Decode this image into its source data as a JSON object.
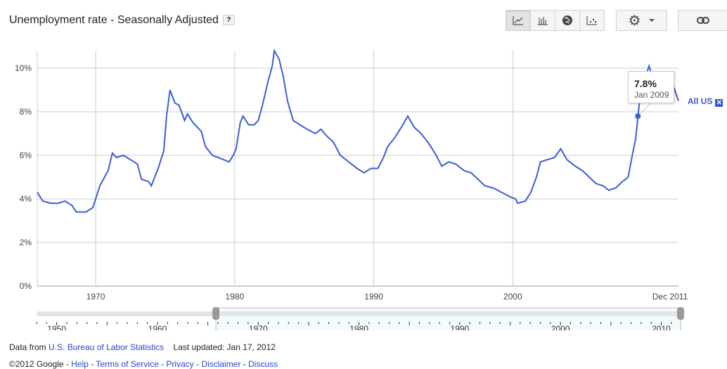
{
  "header": {
    "title": "Unemployment rate - Seasonally Adjusted",
    "help_label": "?"
  },
  "toolbar": {
    "chart_types": [
      {
        "name": "line-chart",
        "active": true
      },
      {
        "name": "bar-chart",
        "active": false
      },
      {
        "name": "map",
        "active": false
      },
      {
        "name": "bubble-chart",
        "active": false
      }
    ],
    "settings_icon": "gear-icon",
    "link_icon": "link-icon"
  },
  "tooltip": {
    "value": "7.8%",
    "date": "Jan 2009"
  },
  "series_label": {
    "name": "All US",
    "remove": "✕"
  },
  "colors": {
    "series": "#3b5ed6",
    "grid": "#cccccc",
    "link": "#2a44c8"
  },
  "chart_data": {
    "type": "line",
    "ylim": [
      0,
      10.8
    ],
    "xlim": [
      1965.8,
      2011.92
    ],
    "y_ticks": [
      {
        "v": 0,
        "label": "0%"
      },
      {
        "v": 2,
        "label": "2%"
      },
      {
        "v": 4,
        "label": "4%"
      },
      {
        "v": 6,
        "label": "6%"
      },
      {
        "v": 8,
        "label": "8%"
      },
      {
        "v": 10,
        "label": "10%"
      }
    ],
    "x_ticks": [
      {
        "v": 1970,
        "label": "1970"
      },
      {
        "v": 1980,
        "label": "1980"
      },
      {
        "v": 1990,
        "label": "1990"
      },
      {
        "v": 2000,
        "label": "2000"
      },
      {
        "v": 2011.92,
        "label": "Dec 2011"
      }
    ],
    "grid": true,
    "highlight": {
      "x": 2009.0,
      "y": 7.8
    },
    "series": [
      {
        "name": "All US",
        "points": [
          [
            1965.8,
            4.3
          ],
          [
            1966.2,
            3.9
          ],
          [
            1966.8,
            3.8
          ],
          [
            1967.3,
            3.8
          ],
          [
            1967.8,
            3.9
          ],
          [
            1968.3,
            3.7
          ],
          [
            1968.6,
            3.4
          ],
          [
            1969.3,
            3.4
          ],
          [
            1969.8,
            3.6
          ],
          [
            1970.3,
            4.6
          ],
          [
            1970.9,
            5.3
          ],
          [
            1971.2,
            6.1
          ],
          [
            1971.5,
            5.9
          ],
          [
            1972.0,
            6.0
          ],
          [
            1972.5,
            5.8
          ],
          [
            1973.0,
            5.6
          ],
          [
            1973.3,
            4.9
          ],
          [
            1973.8,
            4.8
          ],
          [
            1974.0,
            4.6
          ],
          [
            1974.5,
            5.4
          ],
          [
            1974.9,
            6.2
          ],
          [
            1975.1,
            7.8
          ],
          [
            1975.35,
            9.0
          ],
          [
            1975.7,
            8.4
          ],
          [
            1976.0,
            8.3
          ],
          [
            1976.4,
            7.6
          ],
          [
            1976.6,
            7.9
          ],
          [
            1977.0,
            7.5
          ],
          [
            1977.6,
            7.1
          ],
          [
            1977.9,
            6.4
          ],
          [
            1978.4,
            6.0
          ],
          [
            1978.8,
            5.9
          ],
          [
            1979.2,
            5.8
          ],
          [
            1979.6,
            5.7
          ],
          [
            1979.9,
            6.0
          ],
          [
            1980.1,
            6.3
          ],
          [
            1980.4,
            7.5
          ],
          [
            1980.6,
            7.8
          ],
          [
            1981.0,
            7.4
          ],
          [
            1981.4,
            7.4
          ],
          [
            1981.7,
            7.6
          ],
          [
            1982.0,
            8.3
          ],
          [
            1982.4,
            9.4
          ],
          [
            1982.7,
            10.1
          ],
          [
            1982.85,
            10.8
          ],
          [
            1983.2,
            10.4
          ],
          [
            1983.5,
            9.6
          ],
          [
            1983.8,
            8.5
          ],
          [
            1984.2,
            7.6
          ],
          [
            1984.7,
            7.4
          ],
          [
            1985.2,
            7.2
          ],
          [
            1985.8,
            7.0
          ],
          [
            1986.2,
            7.2
          ],
          [
            1986.6,
            6.9
          ],
          [
            1987.1,
            6.6
          ],
          [
            1987.6,
            6.0
          ],
          [
            1988.2,
            5.7
          ],
          [
            1988.8,
            5.4
          ],
          [
            1989.3,
            5.2
          ],
          [
            1989.8,
            5.4
          ],
          [
            1990.3,
            5.4
          ],
          [
            1990.7,
            5.9
          ],
          [
            1991.0,
            6.4
          ],
          [
            1991.5,
            6.8
          ],
          [
            1992.0,
            7.3
          ],
          [
            1992.45,
            7.8
          ],
          [
            1992.9,
            7.3
          ],
          [
            1993.4,
            7.0
          ],
          [
            1993.9,
            6.6
          ],
          [
            1994.4,
            6.1
          ],
          [
            1994.9,
            5.5
          ],
          [
            1995.4,
            5.7
          ],
          [
            1995.9,
            5.6
          ],
          [
            1996.5,
            5.3
          ],
          [
            1997.0,
            5.2
          ],
          [
            1997.5,
            4.9
          ],
          [
            1998.0,
            4.6
          ],
          [
            1998.6,
            4.5
          ],
          [
            1999.2,
            4.3
          ],
          [
            1999.8,
            4.1
          ],
          [
            2000.2,
            4.0
          ],
          [
            2000.35,
            3.8
          ],
          [
            2000.9,
            3.9
          ],
          [
            2001.3,
            4.3
          ],
          [
            2001.7,
            5.0
          ],
          [
            2002.0,
            5.7
          ],
          [
            2002.5,
            5.8
          ],
          [
            2003.0,
            5.9
          ],
          [
            2003.45,
            6.3
          ],
          [
            2003.9,
            5.8
          ],
          [
            2004.5,
            5.5
          ],
          [
            2005.0,
            5.3
          ],
          [
            2005.5,
            5.0
          ],
          [
            2006.0,
            4.7
          ],
          [
            2006.5,
            4.6
          ],
          [
            2006.9,
            4.4
          ],
          [
            2007.4,
            4.5
          ],
          [
            2007.9,
            4.8
          ],
          [
            2008.3,
            5.0
          ],
          [
            2008.6,
            6.0
          ],
          [
            2008.85,
            6.8
          ],
          [
            2009.0,
            7.8
          ],
          [
            2009.2,
            8.9
          ],
          [
            2009.4,
            9.5
          ],
          [
            2009.6,
            9.7
          ],
          [
            2009.8,
            10.1
          ],
          [
            2010.0,
            9.7
          ],
          [
            2010.4,
            9.7
          ],
          [
            2010.9,
            9.6
          ],
          [
            2011.2,
            9.0
          ],
          [
            2011.6,
            9.1
          ],
          [
            2011.92,
            8.5
          ]
        ]
      }
    ]
  },
  "navigator": {
    "range": [
      1948,
      2011.92
    ],
    "selection": [
      1965.8,
      2011.92
    ],
    "labels": [
      "1950",
      "1960",
      "1970",
      "1980",
      "1990",
      "2000",
      "2010"
    ]
  },
  "footer": {
    "data_from": "Data from",
    "source_link": "U.S. Bureau of Labor Statistics",
    "last_updated": "Last updated: Jan 17, 2012",
    "copyright": "©2012 Google",
    "sep": " - ",
    "links": [
      "Help",
      "Terms of Service",
      "Privacy",
      "Disclaimer",
      "Discuss"
    ]
  }
}
